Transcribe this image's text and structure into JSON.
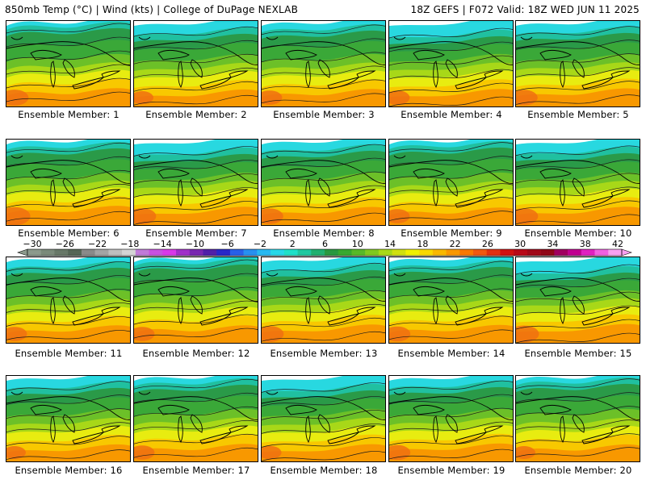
{
  "header": {
    "left": "850mb Temp (°C) | Wind (kts) | College of DuPage NEXLAB",
    "right": "18Z GEFS | F072 Valid: 18Z WED JUN 11 2025"
  },
  "members": [
    {
      "label": "Ensemble Member: 1",
      "row": 0,
      "col": 0,
      "warm": 0.62
    },
    {
      "label": "Ensemble Member: 2",
      "row": 0,
      "col": 1,
      "warm": 0.5
    },
    {
      "label": "Ensemble Member: 3",
      "row": 0,
      "col": 2,
      "warm": 0.55
    },
    {
      "label": "Ensemble Member: 4",
      "row": 0,
      "col": 3,
      "warm": 0.55
    },
    {
      "label": "Ensemble Member: 5",
      "row": 0,
      "col": 4,
      "warm": 0.6
    },
    {
      "label": "Ensemble Member: 6",
      "row": 1,
      "col": 0,
      "warm": 0.7
    },
    {
      "label": "Ensemble Member: 7",
      "row": 1,
      "col": 1,
      "warm": 0.62
    },
    {
      "label": "Ensemble Member: 8",
      "row": 1,
      "col": 2,
      "warm": 0.6
    },
    {
      "label": "Ensemble Member: 9",
      "row": 1,
      "col": 3,
      "warm": 0.55
    },
    {
      "label": "Ensemble Member: 10",
      "row": 1,
      "col": 4,
      "warm": 0.62
    },
    {
      "label": "Ensemble Member: 11",
      "row": 2,
      "col": 0,
      "warm": 0.55
    },
    {
      "label": "Ensemble Member: 12",
      "row": 2,
      "col": 1,
      "warm": 0.55
    },
    {
      "label": "Ensemble Member: 13",
      "row": 2,
      "col": 2,
      "warm": 0.62
    },
    {
      "label": "Ensemble Member: 14",
      "row": 2,
      "col": 3,
      "warm": 0.58
    },
    {
      "label": "Ensemble Member: 15",
      "row": 2,
      "col": 4,
      "warm": 0.66
    },
    {
      "label": "Ensemble Member: 16",
      "row": 3,
      "col": 0,
      "warm": 0.5
    },
    {
      "label": "Ensemble Member: 17",
      "row": 3,
      "col": 1,
      "warm": 0.55
    },
    {
      "label": "Ensemble Member: 18",
      "row": 3,
      "col": 2,
      "warm": 0.52
    },
    {
      "label": "Ensemble Member: 19",
      "row": 3,
      "col": 3,
      "warm": 0.58
    },
    {
      "label": "Ensemble Member: 20",
      "row": 3,
      "col": 4,
      "warm": 0.5
    }
  ],
  "colorbar": {
    "labels": [
      "−30",
      "−26",
      "−22",
      "−18",
      "−14",
      "−10",
      "−6",
      "−2",
      "2",
      "6",
      "10",
      "14",
      "18",
      "22",
      "26",
      "30",
      "34",
      "38",
      "42"
    ],
    "colors": [
      "#8c9a8c",
      "#7a8a7a",
      "#687868",
      "#566656",
      "#8a8a8a",
      "#a4a4a4",
      "#bebebe",
      "#d4d4d4",
      "#c07ad8",
      "#c850e0",
      "#d838e8",
      "#a030c8",
      "#7828b0",
      "#5020a8",
      "#2828c8",
      "#2860e8",
      "#2890f0",
      "#28b8f0",
      "#28d8e8",
      "#20e0c8",
      "#20c8a0",
      "#20b070",
      "#289840",
      "#38a830",
      "#58b828",
      "#80c820",
      "#a8d818",
      "#d0e010",
      "#f0f000",
      "#f8d800",
      "#f8b800",
      "#f89800",
      "#f87800",
      "#f05810",
      "#e03010",
      "#d01010",
      "#b80818",
      "#a00818",
      "#900818",
      "#a00060",
      "#c00090",
      "#e020c0",
      "#f060e0",
      "#f8a0f0"
    ]
  }
}
